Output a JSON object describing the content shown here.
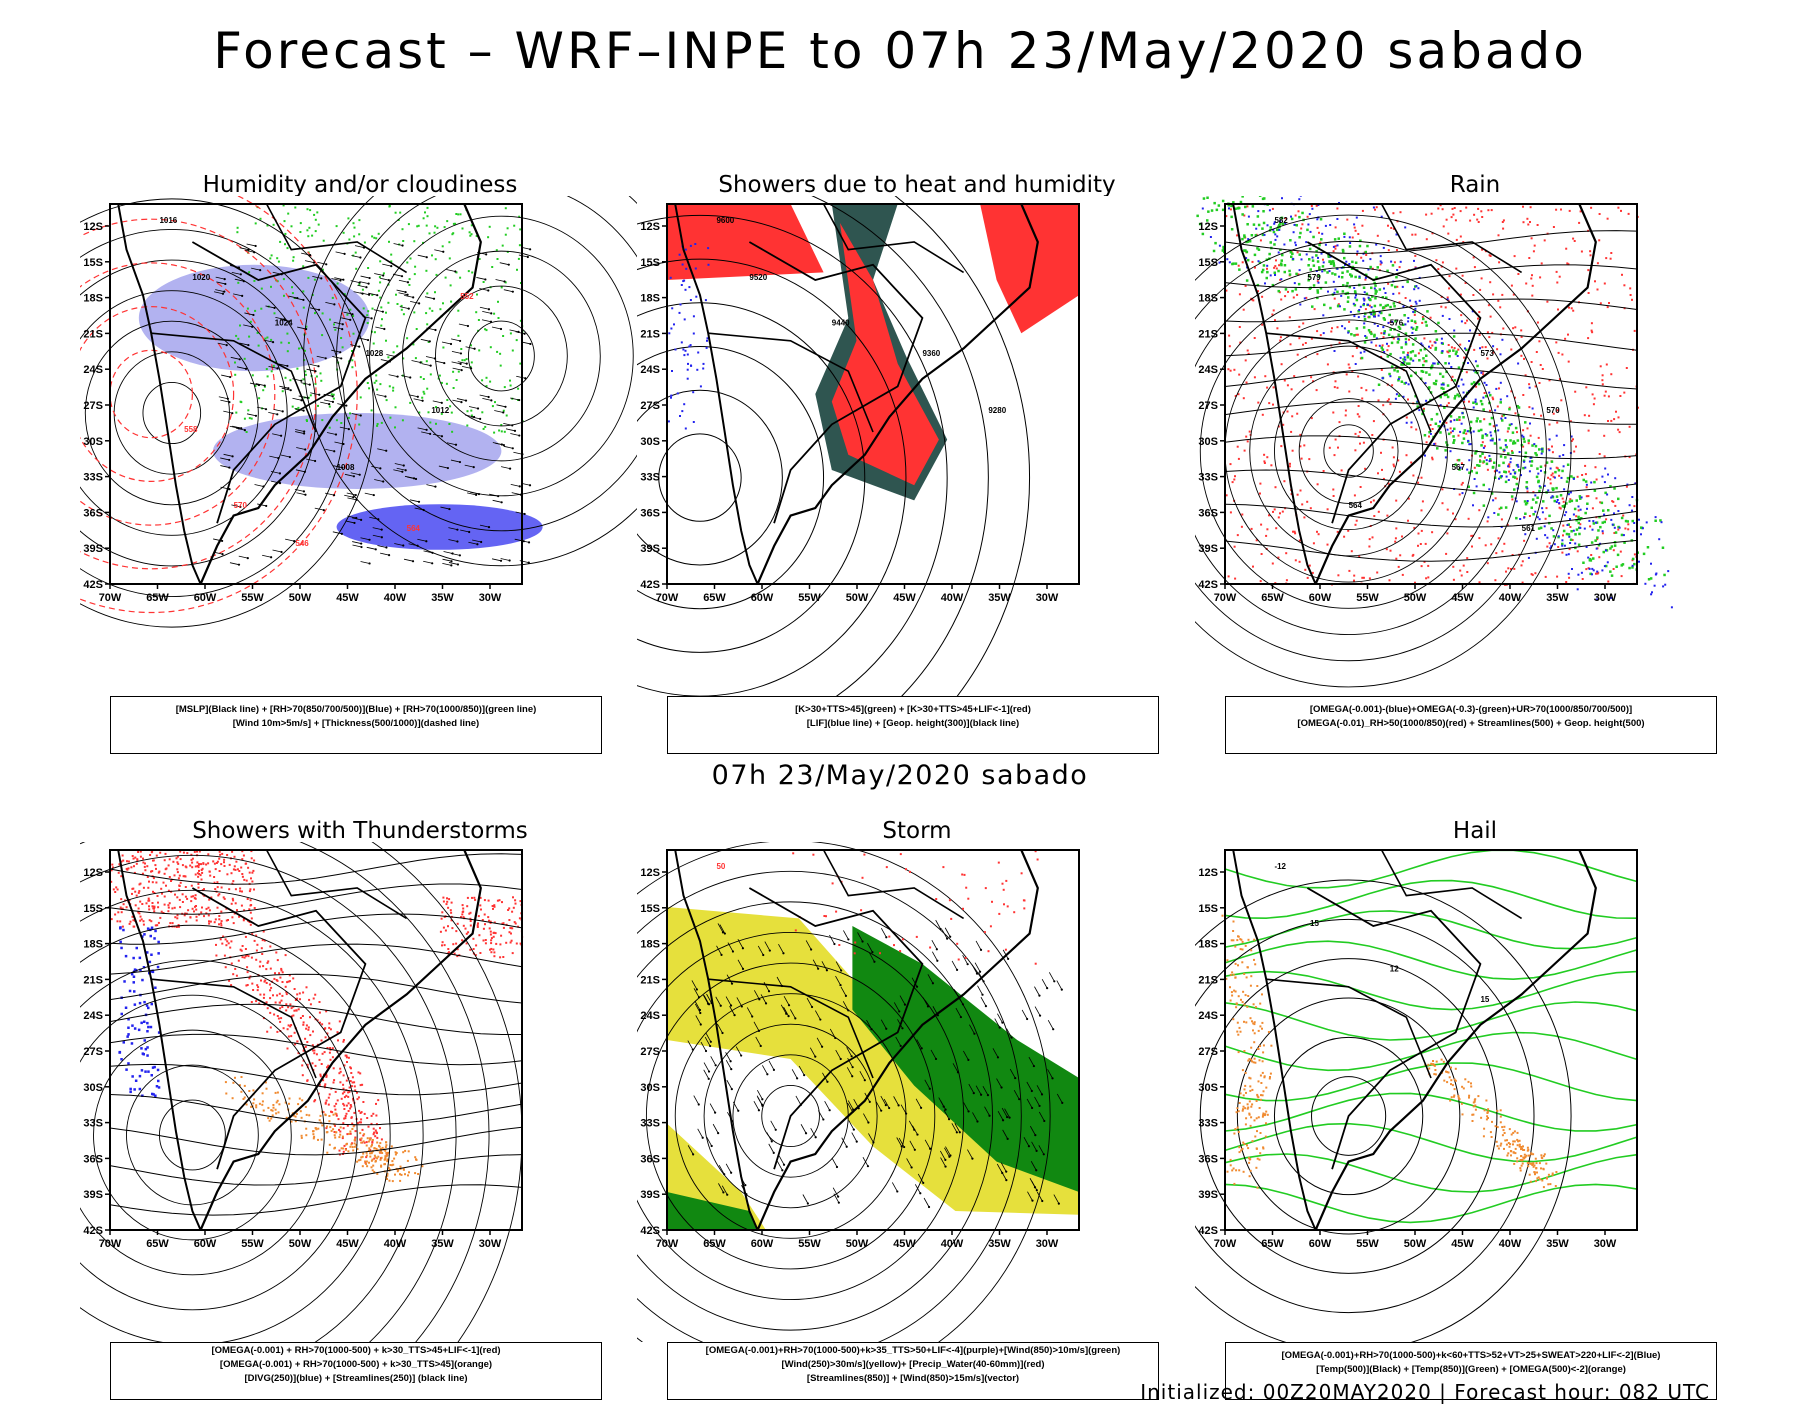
{
  "header": {
    "title": "Forecast – WRF–INPE to 07h 23/May/2020 sabado"
  },
  "middle_title": "07h 23/May/2020 sabado",
  "footer": {
    "text": "Initialized: 00Z20MAY2020 | Forecast hour: 082 UTC"
  },
  "axes": {
    "lat_labels": [
      "12S",
      "15S",
      "18S",
      "21S",
      "24S",
      "27S",
      "30S",
      "33S",
      "36S",
      "39S",
      "42S"
    ],
    "lon_labels": [
      "70W",
      "65W",
      "60W",
      "55W",
      "50W",
      "45W",
      "40W",
      "35W",
      "30W"
    ]
  },
  "panels": [
    {
      "id": "humidity",
      "title": "Humidity and/or cloudiness",
      "legend": [
        "[MSLP](Black line) + [RH>70(850/700/500)](Blue) + [RH>70(1000/850)](green line)",
        "[Wind 10m>5m/s] + [Thickness(500/1000)](dashed line)"
      ],
      "contour_labels": [
        {
          "text": "1016",
          "color": "#000000"
        },
        {
          "text": "1020",
          "color": "#000000"
        },
        {
          "text": "1024",
          "color": "#000000"
        },
        {
          "text": "1028",
          "color": "#000000"
        },
        {
          "text": "1012",
          "color": "#000000"
        },
        {
          "text": "1008",
          "color": "#000000"
        },
        {
          "text": "570",
          "color": "#ff3333"
        },
        {
          "text": "564",
          "color": "#ff3333"
        },
        {
          "text": "558",
          "color": "#ff3333"
        },
        {
          "text": "552",
          "color": "#ff3333"
        },
        {
          "text": "546",
          "color": "#ff3333"
        }
      ]
    },
    {
      "id": "showers-heat",
      "title": "Showers due to heat and humidity",
      "legend": [
        "[K>30+TTS>45](green) + [K>30+TTS>45+LIF<-1](red)",
        "[LIF](blue line) + [Geop. height(300)](black line)"
      ],
      "contour_labels": [
        {
          "text": "9600",
          "color": "#000000"
        },
        {
          "text": "9520",
          "color": "#000000"
        },
        {
          "text": "9440",
          "color": "#000000"
        },
        {
          "text": "9360",
          "color": "#000000"
        },
        {
          "text": "9280",
          "color": "#000000"
        }
      ]
    },
    {
      "id": "rain",
      "title": "Rain",
      "legend": [
        "[OMEGA(-0.001)-(blue)+OMEGA(-0.3)-(green)+UR>70(1000/850/700/500)]",
        "[OMEGA(-0.01)_RH>50(1000/850)(red) + Streamlines(500) + Geop. height(500)"
      ],
      "contour_labels": [
        {
          "text": "582",
          "color": "#000000"
        },
        {
          "text": "579",
          "color": "#000000"
        },
        {
          "text": "576",
          "color": "#000000"
        },
        {
          "text": "573",
          "color": "#000000"
        },
        {
          "text": "570",
          "color": "#000000"
        },
        {
          "text": "567",
          "color": "#000000"
        },
        {
          "text": "564",
          "color": "#000000"
        },
        {
          "text": "561",
          "color": "#000000"
        }
      ]
    },
    {
      "id": "thunderstorms",
      "title": "Showers with Thunderstorms",
      "legend": [
        "[OMEGA(-0.001) + RH>70(1000-500) + k>30_TTS>45+LIF<-1](red)",
        "[OMEGA(-0.001) + RH>70(1000-500) + k>30_TTS>45](orange)",
        "[DIVG(250)](blue) + [Streamlines(250)] (black line)"
      ],
      "contour_labels": []
    },
    {
      "id": "storm",
      "title": "Storm",
      "legend": [
        "[OMEGA(-0.001)+RH>70(1000-500)+k>35_TTS>50+LIF<-4](purple)+[Wind(850)>10m/s](green)",
        "[Wind(250)>30m/s](yellow)+ [Precip_Water(40-60mm)](red)",
        "[Streamlines(850)] + [Wind(850)>15m/s](vector)"
      ],
      "contour_labels": [
        {
          "text": "50",
          "color": "#ff3333"
        }
      ]
    },
    {
      "id": "hail",
      "title": "Hail",
      "legend": [
        "[OMEGA(-0.001)+RH>70(1000-500)+k<60+TTS>52+VT>25+SWEAT>220+LIF<-2](Blue)",
        "[Temp(500)](Black) + [Temp(850)](Green) + [OMEGA(500)<-2](orange)"
      ],
      "contour_labels": [
        {
          "text": "-12",
          "color": "#000000"
        },
        {
          "text": "-15",
          "color": "#000000"
        },
        {
          "text": "12",
          "color": "#000000"
        },
        {
          "text": "15",
          "color": "#000000"
        }
      ]
    }
  ],
  "colors": {
    "red": "#ff3333",
    "green": "#22cc22",
    "blue": "#2222ee",
    "lavender": "#aaaaee",
    "dark_teal": "#2f5550",
    "yellow": "#e6e03c",
    "orange": "#f08a30",
    "dark_green": "#118811"
  }
}
